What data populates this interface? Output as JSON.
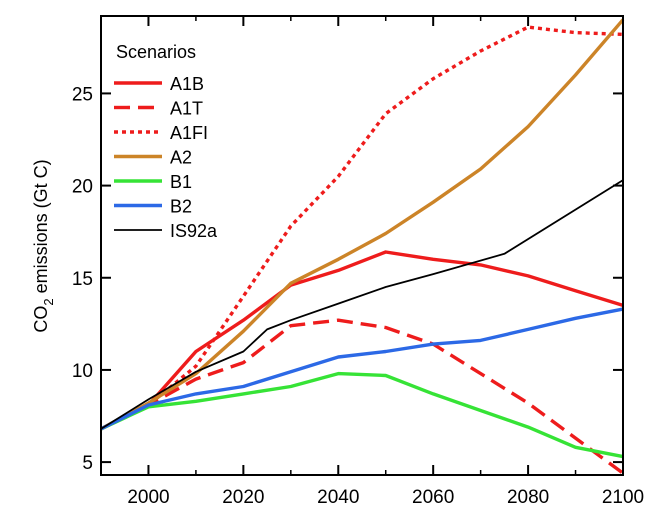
{
  "chart_data": {
    "type": "line",
    "title": "",
    "xlabel": "",
    "ylabel": {
      "main": "CO",
      "sub": "2",
      "rest": " emissions (Gt C)"
    },
    "xlim": [
      1990,
      2100
    ],
    "ylim": [
      4.3,
      29.2
    ],
    "x_ticks": [
      2000,
      2020,
      2040,
      2060,
      2080,
      2100
    ],
    "y_ticks": [
      5,
      10,
      15,
      20,
      25
    ],
    "legend_title": "Scenarios",
    "legend_position": "top-left",
    "grid": false,
    "series": [
      {
        "name": "A1B",
        "color": "#ee1c1c",
        "dash": "solid",
        "points": [
          [
            1990,
            6.8
          ],
          [
            2000,
            8.1
          ],
          [
            2010,
            11.0
          ],
          [
            2020,
            12.7
          ],
          [
            2030,
            14.6
          ],
          [
            2040,
            15.4
          ],
          [
            2050,
            16.4
          ],
          [
            2060,
            16.0
          ],
          [
            2070,
            15.7
          ],
          [
            2080,
            15.1
          ],
          [
            2090,
            14.3
          ],
          [
            2100,
            13.5
          ]
        ]
      },
      {
        "name": "A1T",
        "color": "#ee1c1c",
        "dash": "dashed",
        "points": [
          [
            1990,
            6.8
          ],
          [
            2000,
            8.1
          ],
          [
            2010,
            9.5
          ],
          [
            2020,
            10.4
          ],
          [
            2030,
            12.4
          ],
          [
            2040,
            12.7
          ],
          [
            2050,
            12.3
          ],
          [
            2060,
            11.4
          ],
          [
            2070,
            9.8
          ],
          [
            2080,
            8.2
          ],
          [
            2090,
            6.3
          ],
          [
            2100,
            4.4
          ]
        ]
      },
      {
        "name": "A1FI",
        "color": "#ee1c1c",
        "dash": "dotted",
        "points": [
          [
            1990,
            6.8
          ],
          [
            2000,
            8.1
          ],
          [
            2010,
            10.2
          ],
          [
            2020,
            14.0
          ],
          [
            2030,
            17.8
          ],
          [
            2040,
            20.5
          ],
          [
            2050,
            23.9
          ],
          [
            2060,
            25.8
          ],
          [
            2070,
            27.3
          ],
          [
            2080,
            28.6
          ],
          [
            2090,
            28.3
          ],
          [
            2100,
            28.2
          ]
        ]
      },
      {
        "name": "A2",
        "color": "#cc8428",
        "dash": "solid",
        "points": [
          [
            1990,
            6.8
          ],
          [
            2000,
            8.2
          ],
          [
            2010,
            9.8
          ],
          [
            2020,
            12.1
          ],
          [
            2030,
            14.7
          ],
          [
            2040,
            16.0
          ],
          [
            2050,
            17.4
          ],
          [
            2060,
            19.1
          ],
          [
            2070,
            20.9
          ],
          [
            2080,
            23.2
          ],
          [
            2090,
            26.0
          ],
          [
            2100,
            29.0
          ]
        ]
      },
      {
        "name": "B1",
        "color": "#36e336",
        "dash": "solid",
        "points": [
          [
            1990,
            6.8
          ],
          [
            2000,
            8.0
          ],
          [
            2010,
            8.3
          ],
          [
            2020,
            8.7
          ],
          [
            2030,
            9.1
          ],
          [
            2040,
            9.8
          ],
          [
            2050,
            9.7
          ],
          [
            2060,
            8.7
          ],
          [
            2070,
            7.8
          ],
          [
            2080,
            6.9
          ],
          [
            2090,
            5.8
          ],
          [
            2100,
            5.3
          ]
        ]
      },
      {
        "name": "B2",
        "color": "#2c69e6",
        "dash": "solid",
        "points": [
          [
            1990,
            6.8
          ],
          [
            2000,
            8.1
          ],
          [
            2010,
            8.7
          ],
          [
            2020,
            9.1
          ],
          [
            2030,
            9.9
          ],
          [
            2040,
            10.7
          ],
          [
            2050,
            11.0
          ],
          [
            2060,
            11.4
          ],
          [
            2070,
            11.6
          ],
          [
            2080,
            12.2
          ],
          [
            2090,
            12.8
          ],
          [
            2100,
            13.3
          ]
        ]
      },
      {
        "name": "IS92a",
        "color": "#000000",
        "dash": "solid",
        "points": [
          [
            1990,
            6.8
          ],
          [
            2000,
            8.4
          ],
          [
            2010,
            9.9
          ],
          [
            2020,
            11.0
          ],
          [
            2025,
            12.2
          ],
          [
            2030,
            12.7
          ],
          [
            2040,
            13.6
          ],
          [
            2050,
            14.5
          ],
          [
            2060,
            15.2
          ],
          [
            2075,
            16.3
          ],
          [
            2100,
            20.3
          ]
        ]
      }
    ]
  }
}
